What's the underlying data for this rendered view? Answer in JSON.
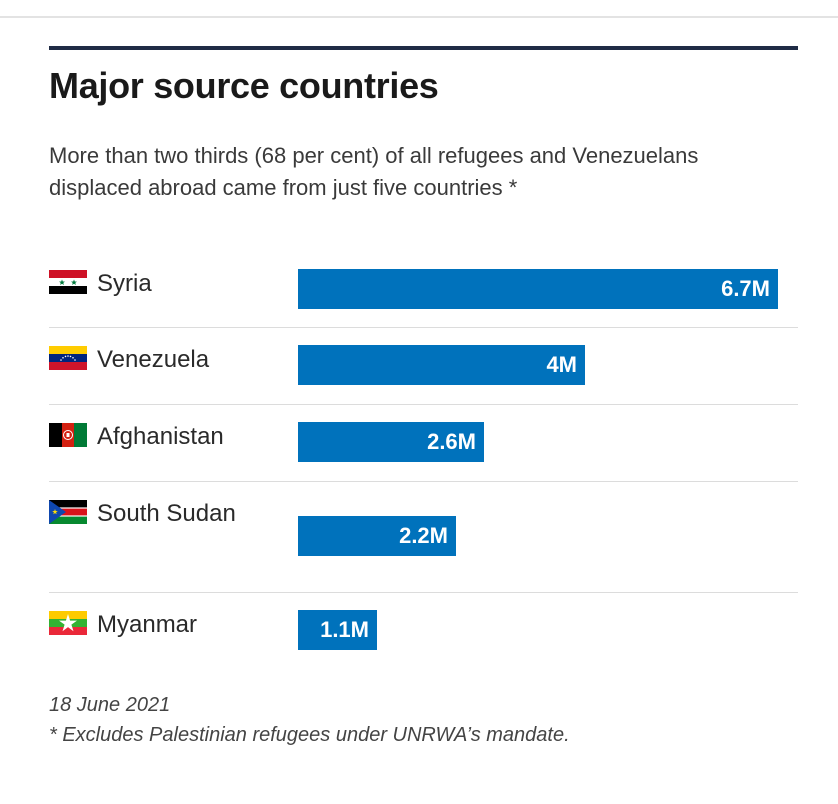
{
  "title": "Major source countries",
  "subtitle": "More than two thirds (68 per cent) of all refugees and Venezuelans displaced abroad came from just five countries *",
  "chart_data": {
    "type": "bar",
    "orientation": "horizontal",
    "categories": [
      "Syria",
      "Venezuela",
      "Afghanistan",
      "South Sudan",
      "Myanmar"
    ],
    "values": [
      6.7,
      4.0,
      2.6,
      2.2,
      1.1
    ],
    "value_labels": [
      "6.7M",
      "4M",
      "2.6M",
      "2.2M",
      "1.1M"
    ],
    "unit": "M",
    "xlim": [
      0,
      6.7
    ],
    "bar_color": "#0072bc",
    "grid": false,
    "flags": [
      "syria-flag-icon",
      "venezuela-flag-icon",
      "afghanistan-flag-icon",
      "south-sudan-flag-icon",
      "myanmar-flag-icon"
    ]
  },
  "footer": {
    "date": "18 June 2021",
    "note": "* Excludes Palestinian refugees under UNRWA’s mandate."
  }
}
